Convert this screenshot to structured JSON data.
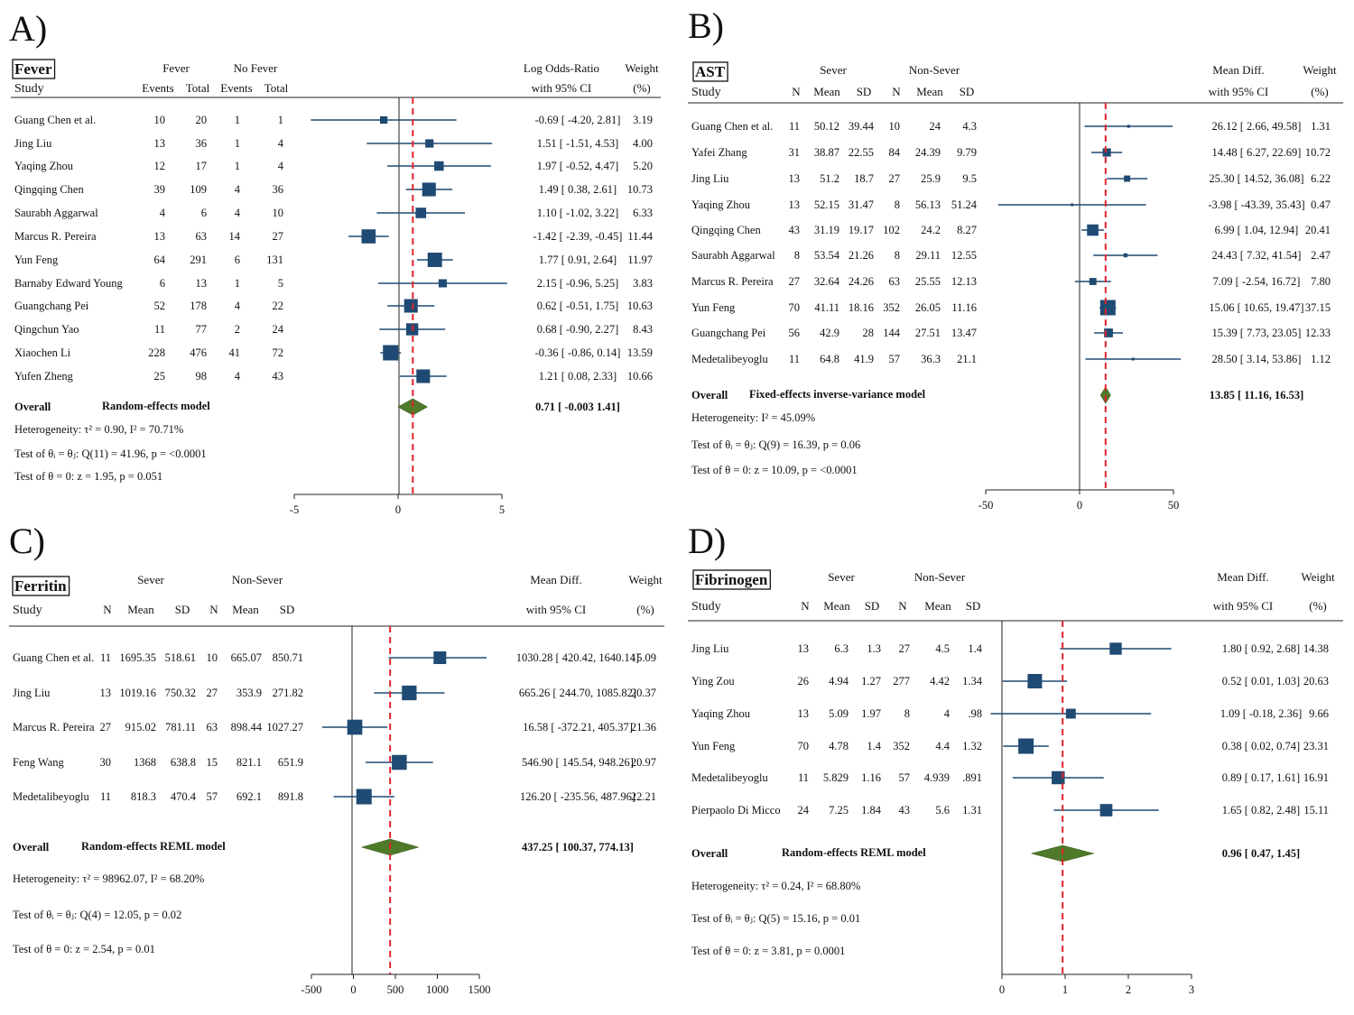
{
  "chart_data": [
    {
      "type": "forest",
      "panel_label": "A)",
      "title": "Fever",
      "header_row1": [
        "Fever",
        "No Fever",
        "Log Odds-Ratio",
        "Weight"
      ],
      "header_row2": [
        "Study",
        "Events",
        "Total",
        "Events",
        "Total",
        "with 95% CI",
        "(%)"
      ],
      "studies": [
        {
          "name": "Guang Chen et al.",
          "cols": [
            "10",
            "20",
            "1",
            "1"
          ],
          "est": -0.69,
          "lo": -4.2,
          "hi": 2.81,
          "ci_text": "-0.69 [ -4.20, 2.81]",
          "weight": 3.19
        },
        {
          "name": "Jing Liu",
          "cols": [
            "13",
            "36",
            "1",
            "4"
          ],
          "est": 1.51,
          "lo": -1.51,
          "hi": 4.53,
          "ci_text": "1.51 [ -1.51, 4.53]",
          "weight": 4.0
        },
        {
          "name": "Yaqing Zhou",
          "cols": [
            "12",
            "17",
            "1",
            "4"
          ],
          "est": 1.97,
          "lo": -0.52,
          "hi": 4.47,
          "ci_text": "1.97 [ -0.52, 4.47]",
          "weight": 5.2
        },
        {
          "name": "Qingqing Chen",
          "cols": [
            "39",
            "109",
            "4",
            "36"
          ],
          "est": 1.49,
          "lo": 0.38,
          "hi": 2.61,
          "ci_text": "1.49 [ 0.38, 2.61]",
          "weight": 10.73
        },
        {
          "name": "Saurabh Aggarwal",
          "cols": [
            "4",
            "6",
            "4",
            "10"
          ],
          "est": 1.1,
          "lo": -1.02,
          "hi": 3.22,
          "ci_text": "1.10 [ -1.02, 3.22]",
          "weight": 6.33
        },
        {
          "name": "Marcus R. Pereira",
          "cols": [
            "13",
            "63",
            "14",
            "27"
          ],
          "est": -1.42,
          "lo": -2.39,
          "hi": -0.45,
          "ci_text": "-1.42 [ -2.39, -0.45]",
          "weight": 11.44
        },
        {
          "name": "Yun Feng",
          "cols": [
            "64",
            "291",
            "6",
            "131"
          ],
          "est": 1.77,
          "lo": 0.91,
          "hi": 2.64,
          "ci_text": "1.77 [ 0.91, 2.64]",
          "weight": 11.97
        },
        {
          "name": "Barnaby Edward Young",
          "cols": [
            "6",
            "13",
            "1",
            "5"
          ],
          "est": 2.15,
          "lo": -0.96,
          "hi": 5.25,
          "ci_text": "2.15 [ -0.96, 5.25]",
          "weight": 3.83
        },
        {
          "name": "Guangchang Pei",
          "cols": [
            "52",
            "178",
            "4",
            "22"
          ],
          "est": 0.62,
          "lo": -0.51,
          "hi": 1.75,
          "ci_text": "0.62 [ -0.51, 1.75]",
          "weight": 10.63
        },
        {
          "name": "Qingchun Yao",
          "cols": [
            "11",
            "77",
            "2",
            "24"
          ],
          "est": 0.68,
          "lo": -0.9,
          "hi": 2.27,
          "ci_text": "0.68 [ -0.90, 2.27]",
          "weight": 8.43
        },
        {
          "name": "Xiaochen Li",
          "cols": [
            "228",
            "476",
            "41",
            "72"
          ],
          "est": -0.36,
          "lo": -0.86,
          "hi": 0.14,
          "ci_text": "-0.36 [ -0.86, 0.14]",
          "weight": 13.59
        },
        {
          "name": "Yufen Zheng",
          "cols": [
            "25",
            "98",
            "4",
            "43"
          ],
          "est": 1.21,
          "lo": 0.08,
          "hi": 2.33,
          "ci_text": "1.21 [ 0.08, 2.33]",
          "weight": 10.66
        }
      ],
      "overall": {
        "label": "Overall",
        "model": "Random-effects model",
        "est": 0.71,
        "lo": -0.003,
        "hi": 1.41,
        "ci_text": "0.71 [ -0.003 1.41]"
      },
      "stats": [
        "Heterogeneity: τ² = 0.90, I² = 70.71%",
        "Test of θᵢ = θⱼ: Q(11) = 41.96, p = <0.0001",
        "Test of θ = 0: z = 1.95, p = 0.051"
      ],
      "ticks": [
        -5,
        0,
        5
      ],
      "xlim": [
        -5,
        5
      ],
      "reference_line": 0.71
    },
    {
      "type": "forest",
      "panel_label": "B)",
      "title": "AST",
      "header_row1": [
        "Sever",
        "Non-Sever",
        "Mean Diff.",
        "Weight"
      ],
      "header_row2": [
        "Study",
        "N",
        "Mean",
        "SD",
        "N",
        "Mean",
        "SD",
        "with 95% CI",
        "(%)"
      ],
      "studies": [
        {
          "name": "Guang Chen et al.",
          "cols": [
            "11",
            "50.12",
            "39.44",
            "10",
            "24",
            "4.3"
          ],
          "est": 26.12,
          "lo": 2.66,
          "hi": 49.58,
          "ci_text": "26.12 [ 2.66, 49.58]",
          "weight": 1.31
        },
        {
          "name": "Yafei Zhang",
          "cols": [
            "31",
            "38.87",
            "22.55",
            "84",
            "24.39",
            "9.79"
          ],
          "est": 14.48,
          "lo": 6.27,
          "hi": 22.69,
          "ci_text": "14.48 [ 6.27, 22.69]",
          "weight": 10.72
        },
        {
          "name": "Jing Liu",
          "cols": [
            "13",
            "51.2",
            "18.7",
            "27",
            "25.9",
            "9.5"
          ],
          "est": 25.3,
          "lo": 14.52,
          "hi": 36.08,
          "ci_text": "25.30 [ 14.52, 36.08]",
          "weight": 6.22
        },
        {
          "name": "Yaqing Zhou",
          "cols": [
            "13",
            "52.15",
            "31.47",
            "8",
            "56.13",
            "51.24"
          ],
          "est": -3.98,
          "lo": -43.39,
          "hi": 35.43,
          "ci_text": "-3.98 [ -43.39, 35.43]",
          "weight": 0.47
        },
        {
          "name": "Qingqing Chen",
          "cols": [
            "43",
            "31.19",
            "19.17",
            "102",
            "24.2",
            "8.27"
          ],
          "est": 6.99,
          "lo": 1.04,
          "hi": 12.94,
          "ci_text": "6.99 [ 1.04, 12.94]",
          "weight": 20.41
        },
        {
          "name": "Saurabh Aggarwal",
          "cols": [
            "8",
            "53.54",
            "21.26",
            "8",
            "29.11",
            "12.55"
          ],
          "est": 24.43,
          "lo": 7.32,
          "hi": 41.54,
          "ci_text": "24.43 [ 7.32, 41.54]",
          "weight": 2.47
        },
        {
          "name": "Marcus R. Pereira",
          "cols": [
            "27",
            "32.64",
            "24.26",
            "63",
            "25.55",
            "12.13"
          ],
          "est": 7.09,
          "lo": -2.54,
          "hi": 16.72,
          "ci_text": "7.09 [ -2.54, 16.72]",
          "weight": 7.8
        },
        {
          "name": "Yun Feng",
          "cols": [
            "70",
            "41.11",
            "18.16",
            "352",
            "26.05",
            "11.16"
          ],
          "est": 15.06,
          "lo": 10.65,
          "hi": 19.47,
          "ci_text": "15.06 [ 10.65, 19.47]",
          "weight": 37.15
        },
        {
          "name": "Guangchang Pei",
          "cols": [
            "56",
            "42.9",
            "28",
            "144",
            "27.51",
            "13.47"
          ],
          "est": 15.39,
          "lo": 7.73,
          "hi": 23.05,
          "ci_text": "15.39 [ 7.73, 23.05]",
          "weight": 12.33
        },
        {
          "name": "Medetalibeyoglu",
          "cols": [
            "11",
            "64.8",
            "41.9",
            "57",
            "36.3",
            "21.1"
          ],
          "est": 28.5,
          "lo": 3.14,
          "hi": 53.86,
          "ci_text": "28.50 [ 3.14, 53.86]",
          "weight": 1.12
        }
      ],
      "overall": {
        "label": "Overall",
        "model": "Fixed-effects inverse-variance model",
        "est": 13.85,
        "lo": 11.16,
        "hi": 16.53,
        "ci_text": "13.85 [ 11.16, 16.53]"
      },
      "stats": [
        "Heterogeneity: I² = 45.09%",
        "Test of θᵢ = θⱼ: Q(9) = 16.39, p = 0.06",
        "Test of θ = 0: z = 10.09, p = <0.0001"
      ],
      "ticks": [
        -50,
        0,
        50
      ],
      "xlim": [
        -50,
        50
      ],
      "reference_line": 13.85
    },
    {
      "type": "forest",
      "panel_label": "C)",
      "title": "Ferritin",
      "header_row1": [
        "Sever",
        "Non-Sever",
        "Mean Diff.",
        "Weight"
      ],
      "header_row2": [
        "Study",
        "N",
        "Mean",
        "SD",
        "N",
        "Mean",
        "SD",
        "with 95% CI",
        "(%)"
      ],
      "studies": [
        {
          "name": "Guang Chen et al.",
          "cols": [
            "11",
            "1695.35",
            "518.61",
            "10",
            "665.07",
            "850.71"
          ],
          "est": 1030.28,
          "lo": 420.42,
          "hi": 1640.14,
          "ci_text": "1030.28 [ 420.42, 1640.14]",
          "weight": 15.09
        },
        {
          "name": "Jing Liu",
          "cols": [
            "13",
            "1019.16",
            "750.32",
            "27",
            "353.9",
            "271.82"
          ],
          "est": 665.26,
          "lo": 244.7,
          "hi": 1085.82,
          "ci_text": "665.26 [ 244.70, 1085.82]",
          "weight": 20.37
        },
        {
          "name": "Marcus R. Pereira",
          "cols": [
            "27",
            "915.02",
            "781.11",
            "63",
            "898.44",
            "1027.27"
          ],
          "est": 16.58,
          "lo": -372.21,
          "hi": 405.37,
          "ci_text": "16.58 [ -372.21, 405.37]",
          "weight": 21.36
        },
        {
          "name": "Feng Wang",
          "cols": [
            "30",
            "1368",
            "638.8",
            "15",
            "821.1",
            "651.9"
          ],
          "est": 546.9,
          "lo": 145.54,
          "hi": 948.26,
          "ci_text": "546.90 [ 145.54, 948.26]",
          "weight": 20.97
        },
        {
          "name": "Medetalibeyoglu",
          "cols": [
            "11",
            "818.3",
            "470.4",
            "57",
            "692.1",
            "891.8"
          ],
          "est": 126.2,
          "lo": -235.56,
          "hi": 487.96,
          "ci_text": "126.20 [ -235.56, 487.96]",
          "weight": 22.21
        }
      ],
      "overall": {
        "label": "Overall",
        "model": "Random-effects REML model",
        "est": 437.25,
        "lo": 100.37,
        "hi": 774.13,
        "ci_text": "437.25 [ 100.37, 774.13]"
      },
      "stats": [
        "Heterogeneity: τ² = 98962.07, I² = 68.20%",
        "Test of θᵢ = θⱼ: Q(4) = 12.05, p = 0.02",
        "Test of θ = 0: z = 2.54, p = 0.01"
      ],
      "ticks": [
        -500,
        0,
        500,
        1000,
        1500
      ],
      "xlim": [
        -500,
        1500
      ],
      "reference_line": 437.25
    },
    {
      "type": "forest",
      "panel_label": "D)",
      "title": "Fibrinogen",
      "header_row1": [
        "Sever",
        "Non-Sever",
        "Mean Diff.",
        "Weight"
      ],
      "header_row2": [
        "Study",
        "N",
        "Mean",
        "SD",
        "N",
        "Mean",
        "SD",
        "with 95% CI",
        "(%)"
      ],
      "studies": [
        {
          "name": "Jing Liu",
          "cols": [
            "13",
            "6.3",
            "1.3",
            "27",
            "4.5",
            "1.4"
          ],
          "est": 1.8,
          "lo": 0.92,
          "hi": 2.68,
          "ci_text": "1.80 [ 0.92, 2.68]",
          "weight": 14.38
        },
        {
          "name": "Ying Zou",
          "cols": [
            "26",
            "4.94",
            "1.27",
            "277",
            "4.42",
            "1.34"
          ],
          "est": 0.52,
          "lo": 0.01,
          "hi": 1.03,
          "ci_text": "0.52 [ 0.01, 1.03]",
          "weight": 20.63
        },
        {
          "name": "Yaqing Zhou",
          "cols": [
            "13",
            "5.09",
            "1.97",
            "8",
            "4",
            ".98"
          ],
          "est": 1.09,
          "lo": -0.18,
          "hi": 2.36,
          "ci_text": "1.09 [ -0.18, 2.36]",
          "weight": 9.66
        },
        {
          "name": "Yun Feng",
          "cols": [
            "70",
            "4.78",
            "1.4",
            "352",
            "4.4",
            "1.32"
          ],
          "est": 0.38,
          "lo": 0.02,
          "hi": 0.74,
          "ci_text": "0.38 [ 0.02, 0.74]",
          "weight": 23.31
        },
        {
          "name": "Medetalibeyoglu",
          "cols": [
            "11",
            "5.829",
            "1.16",
            "57",
            "4.939",
            ".891"
          ],
          "est": 0.89,
          "lo": 0.17,
          "hi": 1.61,
          "ci_text": "0.89 [ 0.17, 1.61]",
          "weight": 16.91
        },
        {
          "name": "Pierpaolo Di Micco",
          "cols": [
            "24",
            "7.25",
            "1.84",
            "43",
            "5.6",
            "1.31"
          ],
          "est": 1.65,
          "lo": 0.82,
          "hi": 2.48,
          "ci_text": "1.65 [ 0.82, 2.48]",
          "weight": 15.11
        }
      ],
      "overall": {
        "label": "Overall",
        "model": "Random-effects REML model",
        "est": 0.96,
        "lo": 0.47,
        "hi": 1.45,
        "ci_text": "0.96 [ 0.47, 1.45]"
      },
      "stats": [
        "Heterogeneity: τ² = 0.24, I² = 68.80%",
        "Test of θᵢ = θⱼ: Q(5) = 15.16, p = 0.01",
        "Test of θ = 0: z = 3.81, p = 0.0001"
      ],
      "ticks": [
        0,
        1,
        2,
        3
      ],
      "xlim": [
        0,
        3
      ],
      "reference_line": 0.96
    }
  ]
}
